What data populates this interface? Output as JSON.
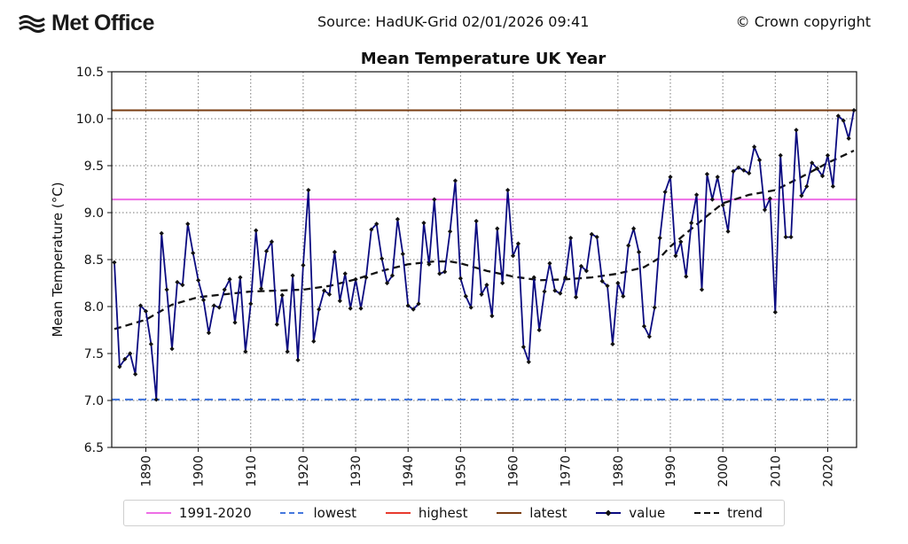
{
  "header": {
    "logo_text": "Met Office",
    "source": "Source: HadUK-Grid 02/01/2026 09:41",
    "copyright": "© Crown copyright"
  },
  "chart_data": {
    "type": "line",
    "title": "Mean Temperature UK Year",
    "xlabel": "",
    "ylabel": "Mean Temperature (°C)",
    "xlim": [
      1883.5,
      2025.5
    ],
    "ylim": [
      6.5,
      10.5
    ],
    "xticks": [
      1890,
      1900,
      1910,
      1920,
      1930,
      1940,
      1950,
      1960,
      1970,
      1980,
      1990,
      2000,
      2010,
      2020
    ],
    "yticks": [
      6.5,
      7.0,
      7.5,
      8.0,
      8.5,
      9.0,
      9.5,
      10.0,
      10.5
    ],
    "grid": true,
    "reference_lines": [
      {
        "name": "1991-2020",
        "value": 9.14,
        "color": "#ee6ee6",
        "style": "solid"
      },
      {
        "name": "lowest",
        "value": 7.01,
        "color": "#4477dd",
        "style": "dashed"
      },
      {
        "name": "highest",
        "value": 10.09,
        "color": "#e83a2e",
        "style": "solid"
      },
      {
        "name": "latest",
        "value": 10.09,
        "color": "#7a3d12",
        "style": "solid"
      }
    ],
    "series": [
      {
        "name": "value",
        "color": "#0b0b80",
        "x_start": 1884,
        "values": [
          8.47,
          7.36,
          7.44,
          7.5,
          7.28,
          8.01,
          7.95,
          7.6,
          7.01,
          8.78,
          8.18,
          7.55,
          8.26,
          8.23,
          8.88,
          8.57,
          8.28,
          8.07,
          7.72,
          8.01,
          7.99,
          8.18,
          8.29,
          7.83,
          8.31,
          7.52,
          8.03,
          8.81,
          8.19,
          8.59,
          8.69,
          7.81,
          8.12,
          7.52,
          8.33,
          7.43,
          8.44,
          9.24,
          7.63,
          7.97,
          8.17,
          8.13,
          8.58,
          8.06,
          8.35,
          7.98,
          8.29,
          7.98,
          8.31,
          8.82,
          8.88,
          8.51,
          8.25,
          8.33,
          8.93,
          8.56,
          8.01,
          7.97,
          8.03,
          8.89,
          8.45,
          9.14,
          8.35,
          8.37,
          8.8,
          9.34,
          8.3,
          8.11,
          7.99,
          8.91,
          8.13,
          8.23,
          7.9,
          8.83,
          8.25,
          9.24,
          8.54,
          8.67,
          7.57,
          7.41,
          8.31,
          7.75,
          8.16,
          8.46,
          8.17,
          8.14,
          8.31,
          8.73,
          8.1,
          8.43,
          8.38,
          8.77,
          8.74,
          8.27,
          8.22,
          7.6,
          8.25,
          8.11,
          8.65,
          8.83,
          8.58,
          7.79,
          7.68,
          7.99,
          8.73,
          9.22,
          9.38,
          8.54,
          8.69,
          8.32,
          8.89,
          9.19,
          8.18,
          9.41,
          9.14,
          9.38,
          9.08,
          8.8,
          9.44,
          9.48,
          9.45,
          9.42,
          9.7,
          9.56,
          9.03,
          9.15,
          7.94,
          9.61,
          8.74,
          8.74,
          9.88,
          9.18,
          9.28,
          9.53,
          9.47,
          9.39,
          9.61,
          9.28,
          10.03,
          9.98,
          9.79,
          10.09
        ]
      },
      {
        "name": "trend",
        "color": "#111111",
        "points": [
          [
            1884,
            7.76
          ],
          [
            1890,
            7.86
          ],
          [
            1895,
            8.02
          ],
          [
            1900,
            8.1
          ],
          [
            1905,
            8.13
          ],
          [
            1910,
            8.16
          ],
          [
            1915,
            8.17
          ],
          [
            1920,
            8.18
          ],
          [
            1925,
            8.22
          ],
          [
            1930,
            8.29
          ],
          [
            1935,
            8.38
          ],
          [
            1940,
            8.45
          ],
          [
            1945,
            8.48
          ],
          [
            1948,
            8.48
          ],
          [
            1950,
            8.46
          ],
          [
            1955,
            8.38
          ],
          [
            1960,
            8.32
          ],
          [
            1965,
            8.28
          ],
          [
            1970,
            8.29
          ],
          [
            1975,
            8.31
          ],
          [
            1980,
            8.35
          ],
          [
            1985,
            8.42
          ],
          [
            1988,
            8.52
          ],
          [
            1990,
            8.64
          ],
          [
            1993,
            8.78
          ],
          [
            1996,
            8.92
          ],
          [
            2000,
            9.1
          ],
          [
            2005,
            9.19
          ],
          [
            2010,
            9.24
          ],
          [
            2015,
            9.38
          ],
          [
            2020,
            9.53
          ],
          [
            2025,
            9.66
          ]
        ]
      }
    ],
    "legend": {
      "placement": "bottom",
      "entries": [
        "1991-2020",
        "lowest",
        "highest",
        "latest",
        "value",
        "trend"
      ]
    }
  }
}
